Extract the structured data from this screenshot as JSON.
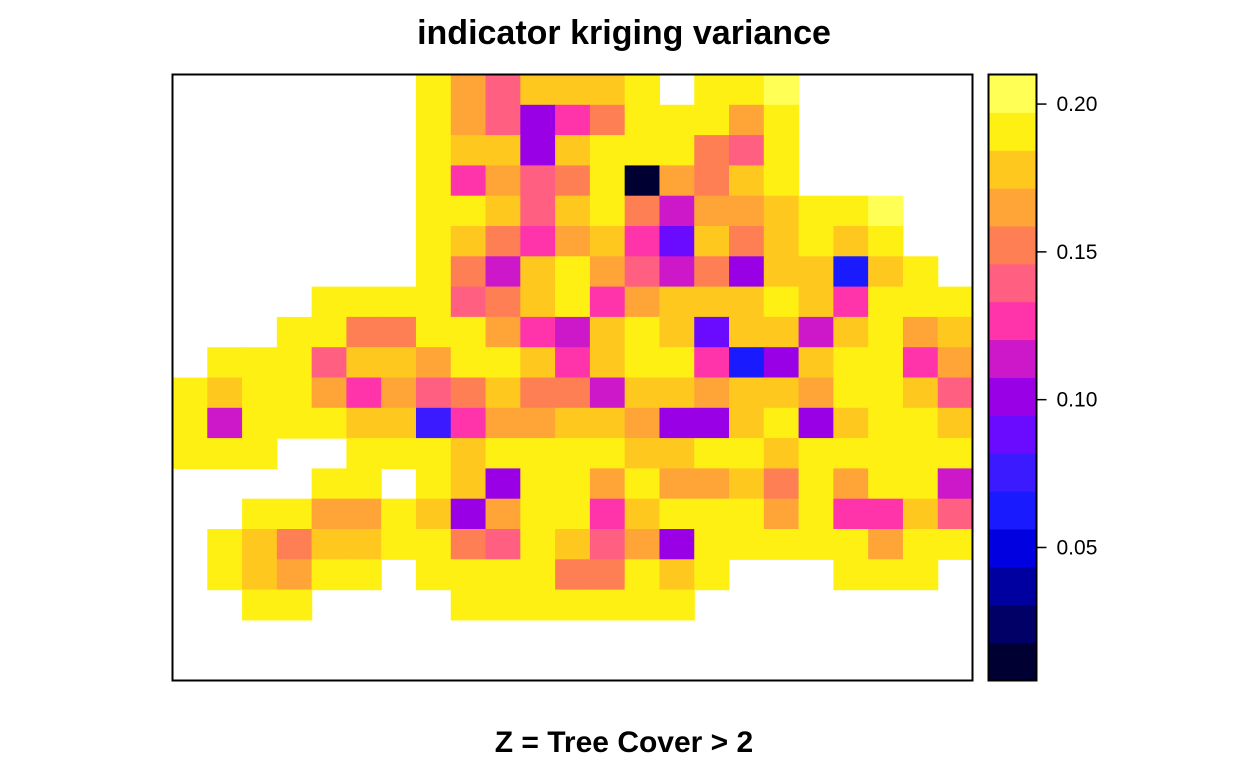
{
  "chart_data": {
    "type": "heatmap",
    "title": "indicator kriging variance",
    "xlabel": "Z = Tree Cover > 2",
    "ylabel": "",
    "legend_position": "right",
    "grid": false,
    "zlim": [
      0.005,
      0.21
    ],
    "palette": [
      "#000033",
      "#000066",
      "#0000a0",
      "#0000e0",
      "#1a1aff",
      "#3b1aff",
      "#6a0aff",
      "#9a00e6",
      "#cc18c8",
      "#ff33aa",
      "#ff5f80",
      "#ff7f55",
      "#ffa538",
      "#ffc81e",
      "#fff014",
      "#ffff55"
    ],
    "colorbar_ticks": [
      "0.05",
      "0.10",
      "0.15",
      "0.20"
    ],
    "colorbar_tick_values": [
      0.05,
      0.1,
      0.15,
      0.2
    ],
    "n_cols": 23,
    "n_rows": 20,
    "values": [
      [
        null,
        null,
        null,
        null,
        null,
        null,
        null,
        0.192,
        0.165,
        0.142,
        0.18,
        0.18,
        0.18,
        0.192,
        null,
        0.192,
        0.192,
        0.205,
        null,
        null,
        null,
        null,
        null
      ],
      [
        null,
        null,
        null,
        null,
        null,
        null,
        null,
        0.192,
        0.165,
        0.142,
        0.105,
        0.128,
        0.152,
        0.192,
        0.192,
        0.192,
        0.165,
        0.192,
        null,
        null,
        null,
        null,
        null
      ],
      [
        null,
        null,
        null,
        null,
        null,
        null,
        null,
        0.192,
        0.18,
        0.18,
        0.105,
        0.18,
        0.192,
        0.192,
        0.192,
        0.152,
        0.142,
        0.192,
        null,
        null,
        null,
        null,
        null
      ],
      [
        null,
        null,
        null,
        null,
        null,
        null,
        null,
        0.192,
        0.128,
        0.165,
        0.142,
        0.152,
        0.192,
        0.005,
        0.165,
        0.152,
        0.18,
        0.192,
        null,
        null,
        null,
        null,
        null
      ],
      [
        null,
        null,
        null,
        null,
        null,
        null,
        null,
        0.192,
        0.192,
        0.18,
        0.142,
        0.18,
        0.192,
        0.152,
        0.118,
        0.165,
        0.165,
        0.18,
        0.192,
        0.192,
        0.205,
        null,
        null
      ],
      [
        null,
        null,
        null,
        null,
        null,
        null,
        null,
        0.192,
        0.18,
        0.152,
        0.128,
        0.165,
        0.18,
        0.128,
        0.09,
        0.18,
        0.152,
        0.18,
        0.192,
        0.18,
        0.192,
        null,
        null
      ],
      [
        null,
        null,
        null,
        null,
        null,
        null,
        null,
        0.192,
        0.152,
        0.118,
        0.18,
        0.192,
        0.165,
        0.142,
        0.118,
        0.152,
        0.105,
        0.18,
        0.18,
        0.065,
        0.18,
        0.192,
        null
      ],
      [
        null,
        null,
        null,
        null,
        0.192,
        0.192,
        0.192,
        0.192,
        0.142,
        0.152,
        0.18,
        0.192,
        0.128,
        0.165,
        0.18,
        0.18,
        0.18,
        0.192,
        0.18,
        0.128,
        0.192,
        0.192,
        0.192
      ],
      [
        null,
        null,
        null,
        0.192,
        0.192,
        0.152,
        0.152,
        0.192,
        0.192,
        0.165,
        0.128,
        0.118,
        0.18,
        0.192,
        0.18,
        0.09,
        0.18,
        0.18,
        0.118,
        0.18,
        0.192,
        0.165,
        0.18
      ],
      [
        null,
        0.192,
        0.192,
        0.192,
        0.142,
        0.18,
        0.18,
        0.165,
        0.192,
        0.192,
        0.18,
        0.128,
        0.18,
        0.192,
        0.192,
        0.128,
        0.06,
        0.105,
        0.18,
        0.192,
        0.192,
        0.128,
        0.165
      ],
      [
        0.192,
        0.18,
        0.192,
        0.192,
        0.165,
        0.128,
        0.165,
        0.142,
        0.152,
        0.18,
        0.152,
        0.152,
        0.118,
        0.18,
        0.18,
        0.165,
        0.18,
        0.18,
        0.165,
        0.192,
        0.192,
        0.18,
        0.142
      ],
      [
        0.192,
        0.118,
        0.192,
        0.192,
        0.192,
        0.18,
        0.18,
        0.08,
        0.128,
        0.165,
        0.165,
        0.18,
        0.18,
        0.165,
        0.105,
        0.105,
        0.18,
        0.192,
        0.105,
        0.18,
        0.192,
        0.192,
        0.18
      ],
      [
        0.192,
        0.192,
        0.192,
        null,
        null,
        0.192,
        0.192,
        0.192,
        0.18,
        0.192,
        0.192,
        0.192,
        0.192,
        0.18,
        0.18,
        0.192,
        0.192,
        0.18,
        0.192,
        0.192,
        0.192,
        0.192,
        0.192
      ],
      [
        null,
        null,
        null,
        null,
        0.192,
        0.192,
        null,
        0.192,
        0.18,
        0.105,
        0.192,
        0.192,
        0.165,
        0.192,
        0.165,
        0.165,
        0.18,
        0.152,
        0.192,
        0.165,
        0.192,
        0.192,
        0.118
      ],
      [
        null,
        null,
        0.192,
        0.192,
        0.165,
        0.165,
        0.192,
        0.18,
        0.105,
        0.165,
        0.192,
        0.192,
        0.128,
        0.18,
        0.192,
        0.192,
        0.192,
        0.165,
        0.192,
        0.128,
        0.128,
        0.18,
        0.142
      ],
      [
        null,
        0.192,
        0.18,
        0.152,
        0.18,
        0.18,
        0.192,
        0.192,
        0.152,
        0.142,
        0.192,
        0.18,
        0.142,
        0.165,
        0.105,
        0.192,
        0.192,
        0.192,
        0.192,
        0.192,
        0.165,
        0.192,
        0.192
      ],
      [
        null,
        0.192,
        0.18,
        0.165,
        0.192,
        0.192,
        null,
        0.192,
        0.192,
        0.192,
        0.192,
        0.152,
        0.152,
        0.192,
        0.18,
        0.192,
        null,
        null,
        null,
        0.192,
        0.192,
        0.192,
        null
      ],
      [
        null,
        null,
        0.192,
        0.192,
        null,
        null,
        null,
        null,
        0.192,
        0.192,
        0.192,
        0.192,
        0.192,
        0.192,
        0.192,
        null,
        null,
        null,
        null,
        null,
        null,
        null,
        null
      ],
      [
        null,
        null,
        null,
        null,
        null,
        null,
        null,
        null,
        null,
        null,
        null,
        null,
        null,
        null,
        null,
        null,
        null,
        null,
        null,
        null,
        null,
        null,
        null
      ],
      [
        null,
        null,
        null,
        null,
        null,
        null,
        null,
        null,
        null,
        null,
        null,
        null,
        null,
        null,
        null,
        null,
        null,
        null,
        null,
        null,
        null,
        null,
        null
      ]
    ]
  }
}
